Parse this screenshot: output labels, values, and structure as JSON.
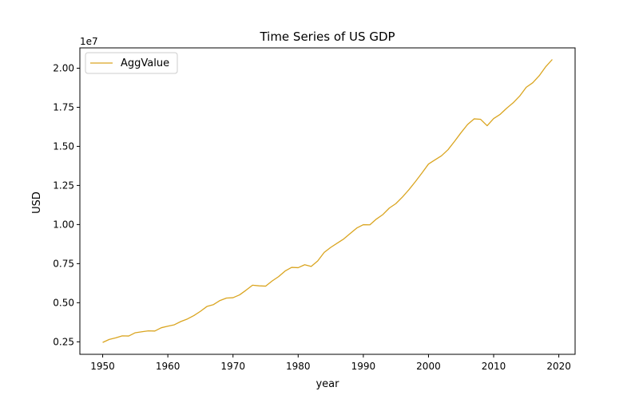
{
  "chart_data": {
    "type": "line",
    "title": "Time Series of US GDP",
    "xlabel": "year",
    "ylabel": "USD",
    "y_scale_label": "1e7",
    "xlim": [
      1946.5,
      2022.5
    ],
    "ylim": [
      1700000,
      21300000
    ],
    "x_ticks": [
      1950,
      1960,
      1970,
      1980,
      1990,
      2000,
      2010,
      2020
    ],
    "x_tick_labels": [
      "1950",
      "1960",
      "1970",
      "1980",
      "1990",
      "2000",
      "2010",
      "2020"
    ],
    "y_ticks": [
      2500000,
      5000000,
      7500000,
      10000000,
      12500000,
      15000000,
      17500000,
      20000000
    ],
    "y_tick_labels": [
      "0.25",
      "0.50",
      "0.75",
      "1.00",
      "1.25",
      "1.50",
      "1.75",
      "2.00"
    ],
    "grid": false,
    "legend": {
      "position": "upper-left",
      "entries": [
        "AggValue"
      ]
    },
    "series": [
      {
        "name": "AggValue",
        "color": "#DAA520",
        "x": [
          1950,
          1951,
          1952,
          1953,
          1954,
          1955,
          1956,
          1957,
          1958,
          1959,
          1960,
          1961,
          1962,
          1963,
          1964,
          1965,
          1966,
          1967,
          1968,
          1969,
          1970,
          1971,
          1972,
          1973,
          1974,
          1975,
          1976,
          1977,
          1978,
          1979,
          1980,
          1981,
          1982,
          1983,
          1984,
          1985,
          1986,
          1987,
          1988,
          1989,
          1990,
          1991,
          1992,
          1993,
          1994,
          1995,
          1996,
          1997,
          1998,
          1999,
          2000,
          2001,
          2002,
          2003,
          2004,
          2005,
          2006,
          2007,
          2008,
          2009,
          2010,
          2011,
          2012,
          2013,
          2014,
          2015,
          2016,
          2017,
          2018,
          2019
        ],
        "y": [
          2460000,
          2650000,
          2750000,
          2880000,
          2870000,
          3080000,
          3140000,
          3200000,
          3190000,
          3400000,
          3500000,
          3590000,
          3800000,
          3960000,
          4180000,
          4450000,
          4760000,
          4880000,
          5140000,
          5300000,
          5320000,
          5500000,
          5800000,
          6120000,
          6080000,
          6060000,
          6390000,
          6670000,
          7030000,
          7260000,
          7240000,
          7430000,
          7320000,
          7670000,
          8220000,
          8540000,
          8810000,
          9080000,
          9430000,
          9780000,
          9990000,
          9980000,
          10350000,
          10640000,
          11060000,
          11340000,
          11760000,
          12230000,
          12750000,
          13300000,
          13870000,
          14140000,
          14400000,
          14790000,
          15320000,
          15880000,
          16400000,
          16760000,
          16730000,
          16320000,
          16780000,
          17050000,
          17440000,
          17790000,
          18220000,
          18780000,
          19070000,
          19520000,
          20100000,
          20560000
        ]
      }
    ]
  }
}
